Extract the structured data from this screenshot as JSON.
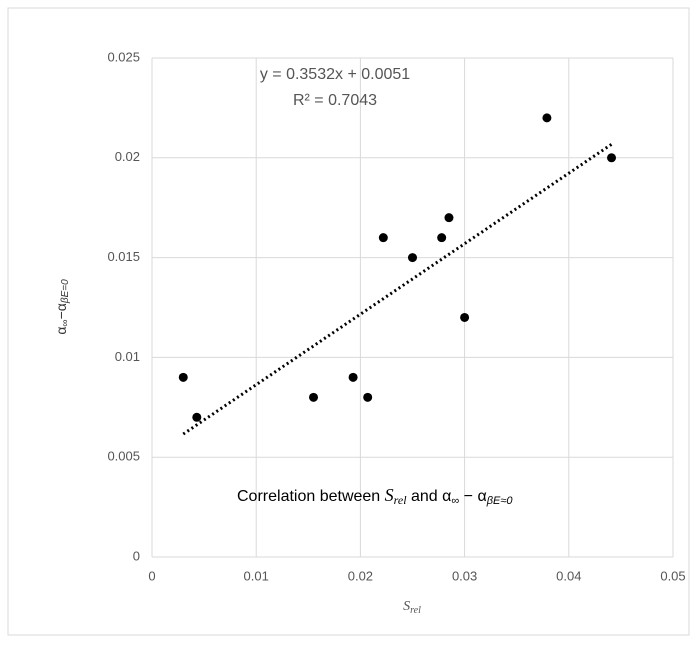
{
  "chart_data": {
    "type": "scatter",
    "x_label": [
      "S",
      "rel"
    ],
    "y_label": [
      "α",
      "∞",
      "−α",
      "βE=0"
    ],
    "annotation": [
      "Correlation between ",
      "S",
      "rel",
      " and α",
      "∞",
      " − α",
      "βE≈0"
    ],
    "trendline": {
      "equation": "y = 0.3532x + 0.0051",
      "r_squared": "R² = 0.7043",
      "slope": 0.3532,
      "intercept": 0.0051
    },
    "x": [
      0.003,
      0.0043,
      0.0155,
      0.0193,
      0.0207,
      0.0222,
      0.025,
      0.0278,
      0.0285,
      0.03,
      0.0379,
      0.0441
    ],
    "values": [
      0.009,
      0.007,
      0.008,
      0.009,
      0.008,
      0.016,
      0.015,
      0.016,
      0.017,
      0.012,
      0.022,
      0.02
    ],
    "color": "#000000",
    "xlim": [
      0,
      0.05
    ],
    "xticks": [
      0,
      0.01,
      0.02,
      0.03,
      0.04,
      0.05
    ],
    "ylim": [
      0,
      0.025
    ],
    "yticks": [
      0,
      0.005,
      0.01,
      0.015,
      0.02,
      0.025
    ],
    "grid": true
  }
}
